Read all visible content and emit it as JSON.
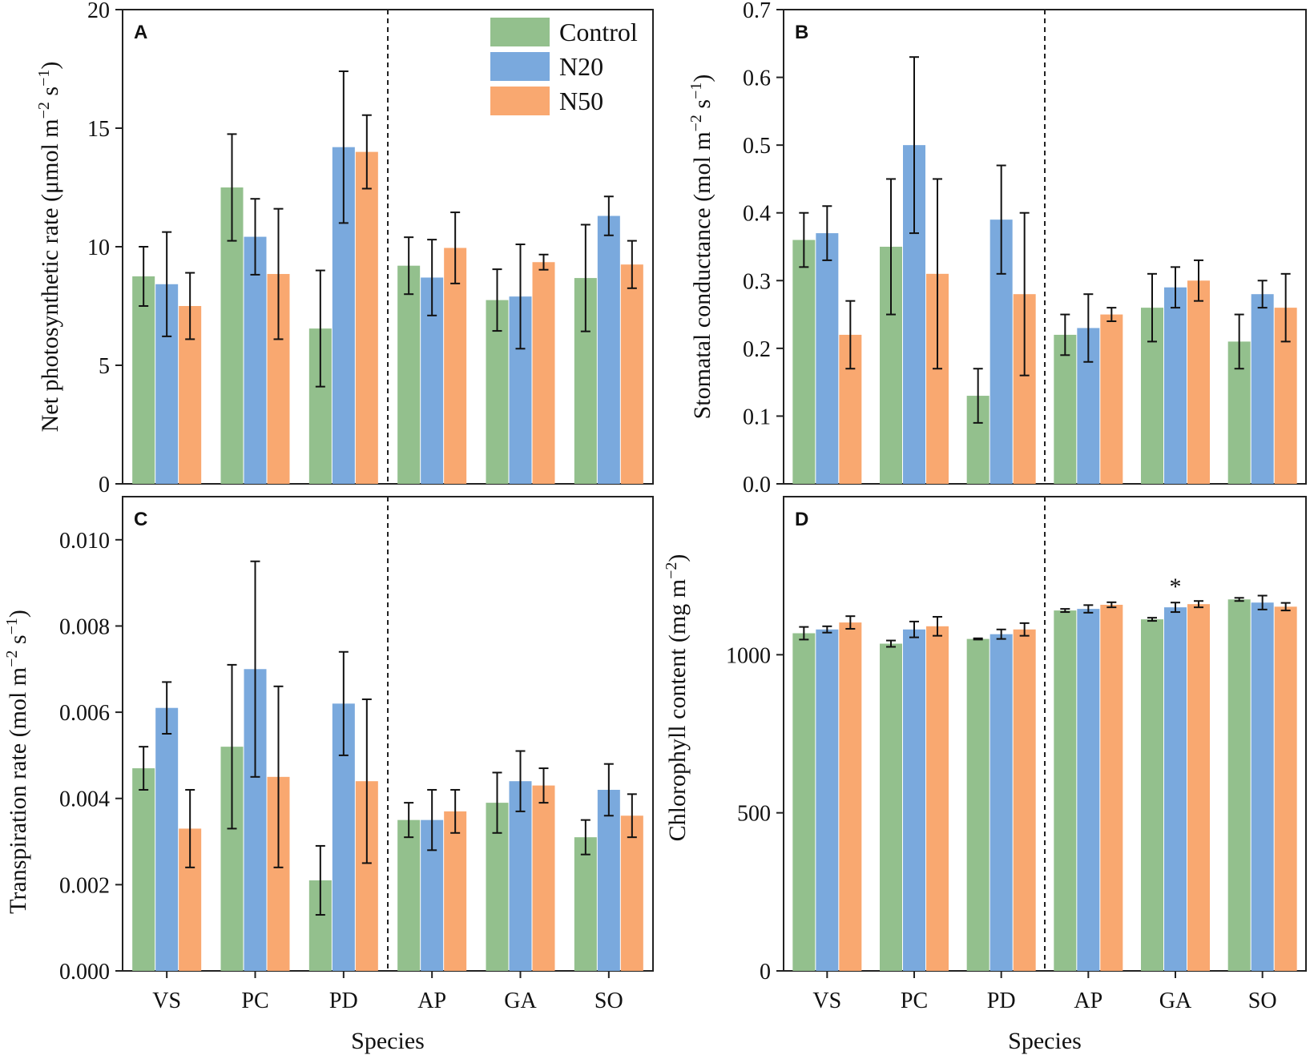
{
  "legend": {
    "entries": [
      {
        "label": "Control",
        "color": "#93c08d"
      },
      {
        "label": "N20",
        "color": "#7aa9dd"
      },
      {
        "label": "N50",
        "color": "#f9a870"
      }
    ]
  },
  "chart_data": [
    {
      "panel": "A",
      "type": "bar",
      "categories": [
        "VS",
        "PC",
        "PD",
        "AP",
        "GA",
        "SO"
      ],
      "xlabel": "",
      "ylabel": "Net photosynthetic rate (μmol m⁻² s⁻¹)",
      "ylim": [
        0,
        20
      ],
      "yticks": [
        0,
        5,
        10,
        15,
        20
      ],
      "ytick_labels": [
        "0",
        "5",
        "10",
        "15",
        "20"
      ],
      "divider_after": 2,
      "series": [
        {
          "name": "Control",
          "values": [
            8.75,
            12.5,
            6.55,
            9.2,
            7.75,
            8.68
          ],
          "errors": [
            1.25,
            2.25,
            2.45,
            1.2,
            1.3,
            2.25
          ]
        },
        {
          "name": "N20",
          "values": [
            8.42,
            10.42,
            14.2,
            8.7,
            7.9,
            11.3
          ],
          "errors": [
            2.2,
            1.6,
            3.2,
            1.6,
            2.2,
            0.82
          ]
        },
        {
          "name": "N50",
          "values": [
            7.5,
            8.85,
            14.0,
            9.95,
            9.35,
            9.25
          ],
          "errors": [
            1.4,
            2.75,
            1.55,
            1.5,
            0.32,
            1.0
          ]
        }
      ],
      "annotations": []
    },
    {
      "panel": "B",
      "type": "bar",
      "categories": [
        "VS",
        "PC",
        "PD",
        "AP",
        "GA",
        "SO"
      ],
      "xlabel": "",
      "ylabel": "Stomatal conductance (mol m⁻² s⁻¹)",
      "ylim": [
        0,
        0.7
      ],
      "yticks": [
        0,
        0.1,
        0.2,
        0.3,
        0.4,
        0.5,
        0.6,
        0.7
      ],
      "ytick_labels": [
        "0.0",
        "0.1",
        "0.2",
        "0.3",
        "0.4",
        "0.5",
        "0.6",
        "0.7"
      ],
      "divider_after": 2,
      "series": [
        {
          "name": "Control",
          "values": [
            0.36,
            0.35,
            0.13,
            0.22,
            0.26,
            0.21
          ],
          "errors": [
            0.04,
            0.1,
            0.04,
            0.03,
            0.05,
            0.04
          ]
        },
        {
          "name": "N20",
          "values": [
            0.37,
            0.5,
            0.39,
            0.23,
            0.29,
            0.28
          ],
          "errors": [
            0.04,
            0.13,
            0.08,
            0.05,
            0.03,
            0.02
          ]
        },
        {
          "name": "N50",
          "values": [
            0.22,
            0.31,
            0.28,
            0.25,
            0.3,
            0.26
          ],
          "errors": [
            0.05,
            0.14,
            0.12,
            0.01,
            0.03,
            0.05
          ]
        }
      ],
      "annotations": []
    },
    {
      "panel": "C",
      "type": "bar",
      "categories": [
        "VS",
        "PC",
        "PD",
        "AP",
        "GA",
        "SO"
      ],
      "xlabel": "Species",
      "ylabel": "Transpiration rate (mol m⁻² s⁻¹)",
      "ylim": [
        0,
        0.011
      ],
      "yticks": [
        0,
        0.002,
        0.004,
        0.006,
        0.008,
        0.01
      ],
      "ytick_labels": [
        "0.000",
        "0.002",
        "0.004",
        "0.006",
        "0.008",
        "0.010"
      ],
      "divider_after": 2,
      "series": [
        {
          "name": "Control",
          "values": [
            0.0047,
            0.0052,
            0.0021,
            0.0035,
            0.0039,
            0.0031
          ],
          "errors": [
            0.0005,
            0.0019,
            0.0008,
            0.0004,
            0.0007,
            0.0004
          ]
        },
        {
          "name": "N20",
          "values": [
            0.0061,
            0.007,
            0.0062,
            0.0035,
            0.0044,
            0.0042
          ],
          "errors": [
            0.0006,
            0.0025,
            0.0012,
            0.0007,
            0.0007,
            0.0006
          ]
        },
        {
          "name": "N50",
          "values": [
            0.0033,
            0.0045,
            0.0044,
            0.0037,
            0.0043,
            0.0036
          ],
          "errors": [
            0.0009,
            0.0021,
            0.0019,
            0.0005,
            0.0004,
            0.0005
          ]
        }
      ],
      "annotations": []
    },
    {
      "panel": "D",
      "type": "bar",
      "categories": [
        "VS",
        "PC",
        "PD",
        "AP",
        "GA",
        "SO"
      ],
      "xlabel": "Species",
      "ylabel": "Chlorophyll content (mg m⁻²)",
      "ylim": [
        0,
        1500
      ],
      "yticks": [
        0,
        500,
        1000
      ],
      "ytick_labels": [
        "0",
        "500",
        "1000"
      ],
      "divider_after": 2,
      "series": [
        {
          "name": "Control",
          "values": [
            1068,
            1035,
            1050,
            1140,
            1112,
            1175
          ],
          "errors": [
            20,
            10,
            2,
            5,
            5,
            5
          ]
        },
        {
          "name": "N20",
          "values": [
            1080,
            1080,
            1065,
            1145,
            1150,
            1165
          ],
          "errors": [
            10,
            25,
            15,
            12,
            15,
            22
          ]
        },
        {
          "name": "N50",
          "values": [
            1102,
            1090,
            1080,
            1158,
            1160,
            1152
          ],
          "errors": [
            20,
            30,
            20,
            8,
            10,
            12
          ]
        }
      ],
      "annotations": [
        {
          "text": "*",
          "category": "GA",
          "series": "N20"
        }
      ]
    }
  ]
}
